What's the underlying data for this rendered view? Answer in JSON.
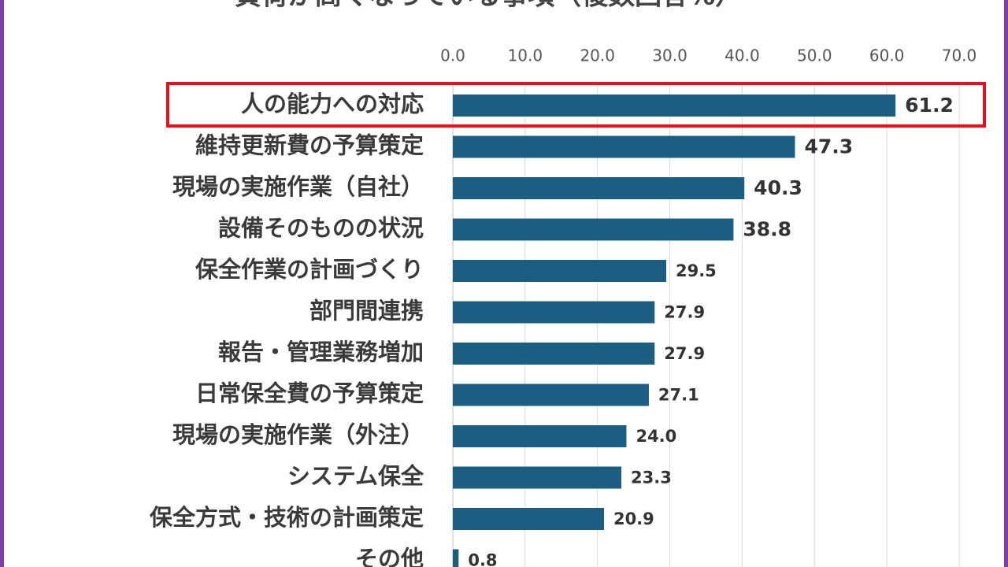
{
  "chart_data": {
    "type": "bar",
    "orientation": "horizontal",
    "title": "負荷が高くなっている事項（複数回答%）",
    "categories": [
      "人の能力への対応",
      "維持更新費の予算策定",
      "現場の実施作業（自社）",
      "設備そのものの状況",
      "保全作業の計画づくり",
      "部門間連携",
      "報告・管理業務増加",
      "日常保全費の予算策定",
      "現場の実施作業（外注）",
      "システム保全",
      "保全方式・技術の計画策定",
      "その他"
    ],
    "values": [
      61.2,
      47.3,
      40.3,
      38.8,
      29.5,
      27.9,
      27.9,
      27.1,
      24.0,
      23.3,
      20.9,
      0.8
    ],
    "value_labels": [
      "61.2",
      "47.3",
      "40.3",
      "38.8",
      "29.5",
      "27.9",
      "27.9",
      "27.1",
      "24.0",
      "23.3",
      "20.9",
      "0.8"
    ],
    "color": "#1b5e82",
    "xlim": [
      0,
      70
    ],
    "xticks": [
      {
        "value": 0,
        "label": "0.0"
      },
      {
        "value": 10,
        "label": "10.0"
      },
      {
        "value": 20,
        "label": "20.0"
      },
      {
        "value": 30,
        "label": "30.0"
      },
      {
        "value": 40,
        "label": "40.0"
      },
      {
        "value": 50,
        "label": "50.0"
      },
      {
        "value": 60,
        "label": "60.0"
      },
      {
        "value": 70,
        "label": "70.0"
      }
    ],
    "grid": true
  }
}
